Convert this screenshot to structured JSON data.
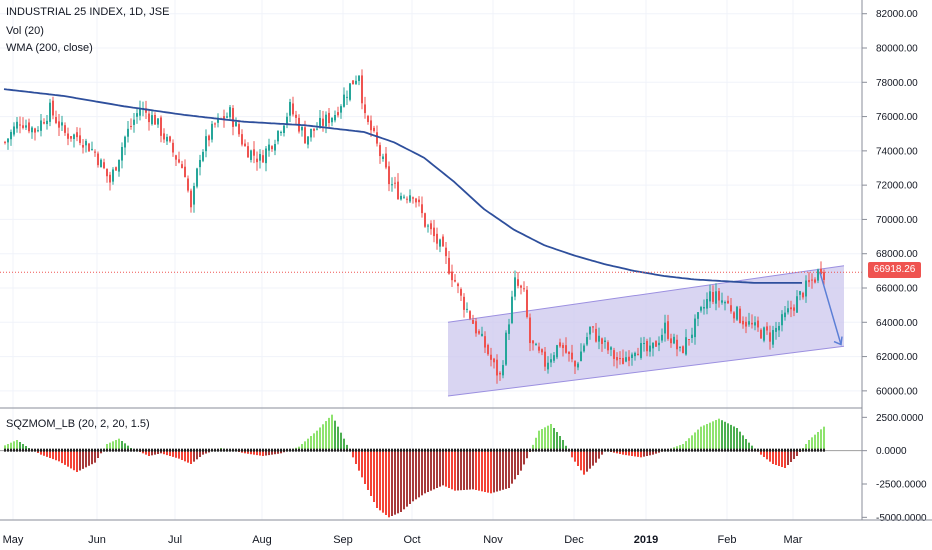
{
  "header": {
    "title": "INDUSTRIAL 25 INDEX, 1D, JSE",
    "vol": "Vol (20)",
    "wma": "WMA (200, close)",
    "osc": "SQZMOM_LB (20, 2, 20, 1.5)"
  },
  "last_price": "66918.26",
  "colors": {
    "up": "#26a69a",
    "down": "#ef5350",
    "wma": "#2e4f9c",
    "channel_fill": "#c9c3ec",
    "channel_line": "#9b8fe0",
    "arrow": "#5b7fd6",
    "mom_up_strong": "#4caf50",
    "mom_up_weak": "#8ee36e",
    "mom_down_strong": "#f44336",
    "mom_down_weak": "#a83a3a"
  },
  "chart_data": [
    {
      "type": "candlestick",
      "title": "INDUSTRIAL 25 INDEX, 1D, JSE",
      "y_ticks": [
        "82000.00",
        "80000.00",
        "78000.00",
        "76000.00",
        "74000.00",
        "72000.00",
        "70000.00",
        "68000.00",
        "66000.00",
        "64000.00",
        "62000.00",
        "60000.00"
      ],
      "ylim": [
        59000,
        82800
      ],
      "x_ticks": [
        "May",
        "Jun",
        "Jul",
        "Aug",
        "Sep",
        "Oct",
        "Nov",
        "Dec",
        "2019",
        "Feb",
        "Mar"
      ],
      "price_path": [
        [
          0,
          74500
        ],
        [
          5,
          75800
        ],
        [
          10,
          75200
        ],
        [
          15,
          76400
        ],
        [
          20,
          75000
        ],
        [
          25,
          74800
        ],
        [
          30,
          73900
        ],
        [
          35,
          72200
        ],
        [
          40,
          74800
        ],
        [
          45,
          76500
        ],
        [
          50,
          75800
        ],
        [
          55,
          74200
        ],
        [
          60,
          72800
        ],
        [
          62,
          70500
        ],
        [
          65,
          73800
        ],
        [
          70,
          75500
        ],
        [
          75,
          76200
        ],
        [
          80,
          74200
        ],
        [
          85,
          73500
        ],
        [
          90,
          74800
        ],
        [
          95,
          76500
        ],
        [
          100,
          74800
        ],
        [
          105,
          75500
        ],
        [
          110,
          76200
        ],
        [
          115,
          77800
        ],
        [
          118,
          78600
        ],
        [
          120,
          75800
        ],
        [
          122,
          75200
        ],
        [
          125,
          73800
        ],
        [
          128,
          72200
        ],
        [
          132,
          71400
        ],
        [
          136,
          71600
        ],
        [
          140,
          69800
        ],
        [
          145,
          68400
        ],
        [
          150,
          66400
        ],
        [
          152,
          65400
        ],
        [
          155,
          64400
        ],
        [
          158,
          63200
        ],
        [
          160,
          62600
        ],
        [
          163,
          61400
        ],
        [
          165,
          60800
        ],
        [
          168,
          64200
        ],
        [
          170,
          66300
        ],
        [
          173,
          65600
        ],
        [
          175,
          62800
        ],
        [
          180,
          61600
        ],
        [
          185,
          62800
        ],
        [
          190,
          61400
        ],
        [
          195,
          63600
        ],
        [
          200,
          62600
        ],
        [
          205,
          61600
        ],
        [
          210,
          62600
        ],
        [
          215,
          62200
        ],
        [
          220,
          63700
        ],
        [
          225,
          62200
        ],
        [
          230,
          63800
        ],
        [
          235,
          65600
        ],
        [
          240,
          65200
        ],
        [
          245,
          64300
        ],
        [
          250,
          63600
        ],
        [
          255,
          63200
        ],
        [
          258,
          63800
        ],
        [
          262,
          64800
        ],
        [
          266,
          65800
        ],
        [
          270,
          66600
        ],
        [
          272,
          67200
        ],
        [
          273,
          66900
        ]
      ],
      "wma": [
        [
          0,
          77600
        ],
        [
          20,
          77200
        ],
        [
          40,
          76600
        ],
        [
          60,
          76100
        ],
        [
          80,
          75700
        ],
        [
          100,
          75500
        ],
        [
          110,
          75300
        ],
        [
          120,
          75100
        ],
        [
          130,
          74500
        ],
        [
          140,
          73600
        ],
        [
          150,
          72200
        ],
        [
          160,
          70600
        ],
        [
          170,
          69400
        ],
        [
          180,
          68500
        ],
        [
          190,
          67900
        ],
        [
          200,
          67400
        ],
        [
          210,
          67000
        ],
        [
          220,
          66700
        ],
        [
          230,
          66500
        ],
        [
          240,
          66400
        ],
        [
          250,
          66300
        ],
        [
          260,
          66300
        ],
        [
          266,
          66300
        ]
      ],
      "channel": {
        "lower": [
          [
            148,
            59700
          ],
          [
            280,
            62600
          ]
        ],
        "upper": [
          [
            148,
            64000
          ],
          [
            280,
            67300
          ]
        ]
      },
      "projection": [
        [
          272,
          66900
        ],
        [
          279,
          62700
        ]
      ],
      "last_value": 66918.26
    },
    {
      "type": "bar",
      "title": "SQZMOM_LB (20, 2, 20, 1.5)",
      "y_ticks": [
        "2500.0000",
        "0.0000",
        "-2500.0000",
        "-5000.0000"
      ],
      "ylim": [
        -5200,
        3200
      ],
      "momentum_path": [
        [
          0,
          400
        ],
        [
          4,
          800
        ],
        [
          8,
          200
        ],
        [
          12,
          -300
        ],
        [
          18,
          -800
        ],
        [
          24,
          -1600
        ],
        [
          30,
          -900
        ],
        [
          34,
          500
        ],
        [
          38,
          900
        ],
        [
          42,
          200
        ],
        [
          48,
          -400
        ],
        [
          52,
          -200
        ],
        [
          58,
          -600
        ],
        [
          62,
          -1000
        ],
        [
          66,
          -300
        ],
        [
          72,
          200
        ],
        [
          80,
          -200
        ],
        [
          86,
          -400
        ],
        [
          92,
          -200
        ],
        [
          98,
          300
        ],
        [
          104,
          1500
        ],
        [
          109,
          2700
        ],
        [
          113,
          900
        ],
        [
          116,
          -500
        ],
        [
          120,
          -2500
        ],
        [
          124,
          -4300
        ],
        [
          128,
          -5000
        ],
        [
          132,
          -4600
        ],
        [
          136,
          -3800
        ],
        [
          140,
          -3200
        ],
        [
          146,
          -2600
        ],
        [
          150,
          -3000
        ],
        [
          156,
          -2900
        ],
        [
          162,
          -3200
        ],
        [
          168,
          -2800
        ],
        [
          172,
          -1500
        ],
        [
          175,
          -100
        ],
        [
          178,
          1500
        ],
        [
          182,
          2000
        ],
        [
          186,
          800
        ],
        [
          189,
          -500
        ],
        [
          193,
          -1800
        ],
        [
          197,
          -900
        ],
        [
          200,
          0
        ],
        [
          206,
          -300
        ],
        [
          212,
          -500
        ],
        [
          216,
          -300
        ],
        [
          220,
          0
        ],
        [
          226,
          500
        ],
        [
          232,
          1800
        ],
        [
          238,
          2400
        ],
        [
          244,
          1700
        ],
        [
          248,
          600
        ],
        [
          252,
          -300
        ],
        [
          256,
          -1000
        ],
        [
          260,
          -1300
        ],
        [
          264,
          -400
        ],
        [
          268,
          800
        ],
        [
          273,
          1800
        ]
      ]
    }
  ]
}
